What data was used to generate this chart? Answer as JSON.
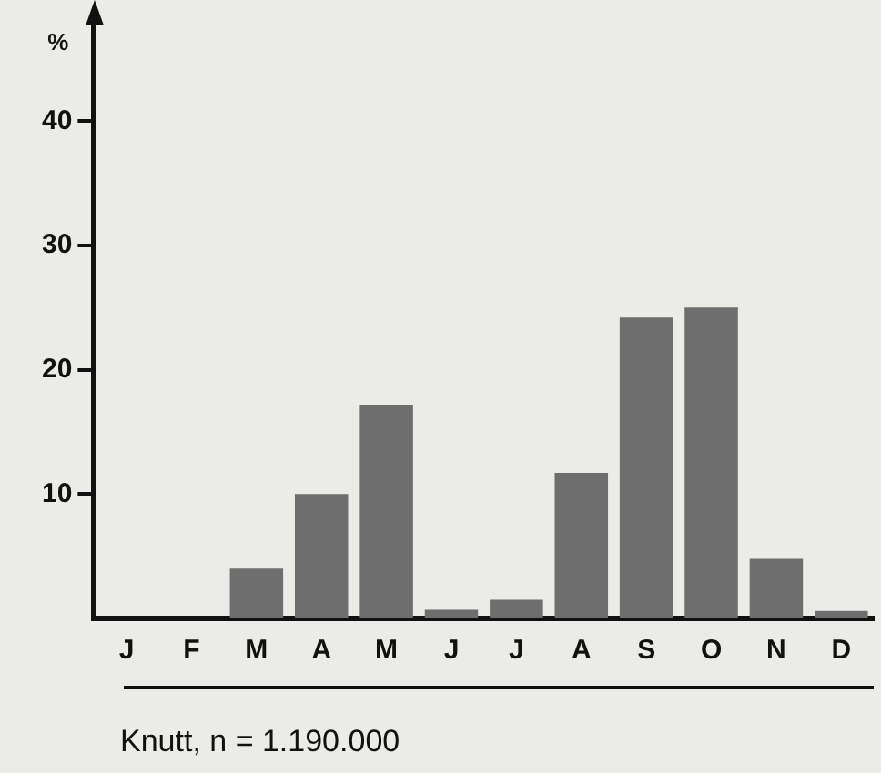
{
  "chart_data": {
    "type": "bar",
    "ylabel": "%",
    "categories": [
      "J",
      "F",
      "M",
      "A",
      "M",
      "J",
      "J",
      "A",
      "S",
      "O",
      "N",
      "D"
    ],
    "values": [
      0,
      0,
      4,
      10,
      17.2,
      0.7,
      1.5,
      11.7,
      24.2,
      25,
      4.8,
      0.6
    ],
    "color": "#6e6e6e",
    "ylim": [
      0,
      48
    ],
    "yticks": [
      10,
      20,
      30,
      40
    ],
    "grid": false,
    "legend": false,
    "annotations": [
      "Knutt, n = 1.190.000"
    ]
  }
}
